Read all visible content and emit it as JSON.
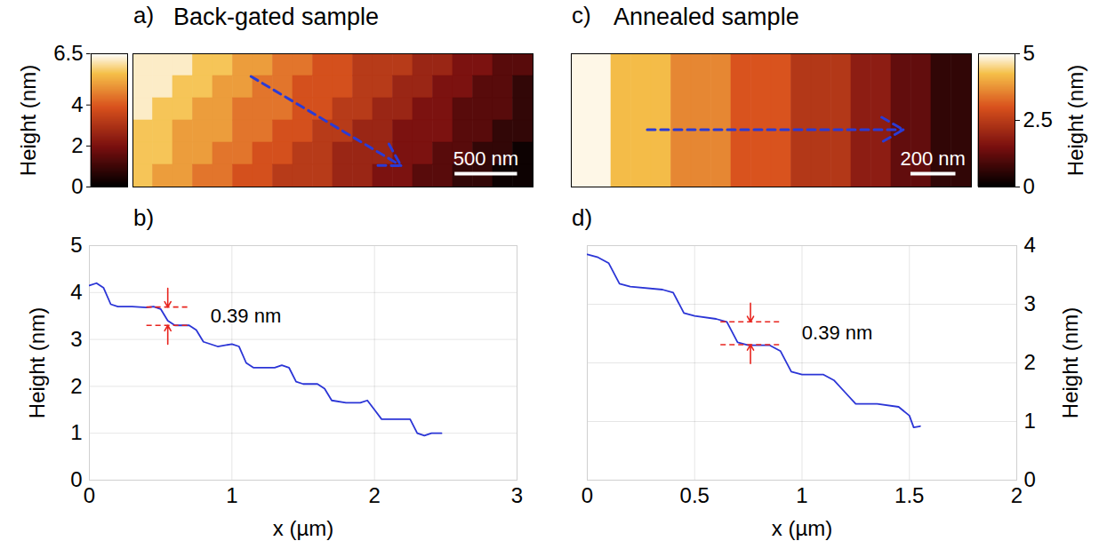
{
  "chart_data": [
    {
      "type": "heatmap",
      "panel": "a)",
      "title": "Back-gated sample",
      "xlim": [
        0,
        3200
      ],
      "ylim": [
        0,
        1070
      ],
      "cells": [
        [
          6.2,
          6.2,
          6.2,
          5.6,
          5.6,
          5.0,
          5.0,
          4.4,
          4.4,
          3.8,
          3.8,
          3.2,
          3.2,
          3.2,
          2.6,
          2.6,
          2.0,
          2.0,
          1.4,
          1.4
        ],
        [
          6.2,
          6.2,
          5.6,
          5.6,
          5.0,
          5.0,
          4.4,
          4.4,
          3.8,
          3.8,
          3.8,
          3.2,
          3.2,
          2.6,
          2.6,
          2.0,
          2.0,
          1.4,
          1.4,
          0.8
        ],
        [
          6.2,
          5.6,
          5.6,
          5.0,
          5.0,
          4.4,
          4.4,
          4.4,
          3.8,
          3.8,
          3.2,
          3.2,
          2.6,
          2.6,
          2.0,
          2.0,
          1.4,
          1.4,
          1.4,
          0.8
        ],
        [
          5.6,
          5.6,
          5.0,
          5.0,
          5.0,
          4.4,
          4.4,
          3.8,
          3.8,
          3.2,
          3.2,
          2.6,
          2.6,
          2.0,
          2.0,
          2.0,
          1.4,
          1.4,
          0.8,
          0.8
        ],
        [
          5.6,
          5.6,
          5.0,
          5.0,
          4.4,
          4.4,
          3.8,
          3.8,
          3.2,
          3.2,
          2.6,
          2.6,
          2.6,
          2.0,
          2.0,
          1.4,
          1.4,
          0.8,
          0.8,
          0.2
        ],
        [
          5.6,
          5.0,
          5.0,
          4.4,
          4.4,
          3.8,
          3.8,
          3.2,
          3.2,
          3.2,
          2.6,
          2.6,
          2.0,
          2.0,
          1.4,
          1.4,
          0.8,
          0.8,
          0.2,
          0.2
        ]
      ],
      "colorbar": {
        "label": "Height (nm)",
        "range": [
          0,
          6.5
        ],
        "ticks": [
          0,
          2,
          4,
          6.5
        ]
      },
      "scalebar": {
        "length": 500,
        "label": "500 nm"
      },
      "profile_arrow": {
        "x": [
          944,
          2144
        ],
        "y": [
          888,
          171
        ]
      },
      "tick_labels": false
    },
    {
      "type": "heatmap",
      "panel": "c)",
      "title": "Annealed sample",
      "xlim": [
        0,
        1780
      ],
      "ylim": [
        0,
        600
      ],
      "cells": [
        [
          4.9,
          4.9,
          4.2,
          4.2,
          4.2,
          3.6,
          3.6,
          3.6,
          3.0,
          3.0,
          3.0,
          2.4,
          2.4,
          2.4,
          1.8,
          1.8,
          1.2,
          1.2,
          0.6,
          0.6
        ]
      ],
      "colorbar": {
        "label": "Height (nm)",
        "range": [
          0,
          5
        ],
        "ticks": [
          0,
          2.5,
          5
        ]
      },
      "scalebar": {
        "length": 200,
        "label": "200 nm"
      },
      "profile_arrow": {
        "x": [
          338,
          1477
        ],
        "y": [
          258,
          258
        ]
      },
      "tick_labels": false
    },
    {
      "type": "line",
      "panel": "b)",
      "x": [
        0,
        0.05,
        0.1,
        0.15,
        0.2,
        0.3,
        0.4,
        0.45,
        0.5,
        0.55,
        0.6,
        0.7,
        0.75,
        0.8,
        0.9,
        1.0,
        1.05,
        1.1,
        1.15,
        1.3,
        1.35,
        1.4,
        1.45,
        1.5,
        1.6,
        1.65,
        1.7,
        1.8,
        1.9,
        1.95,
        2.0,
        2.05,
        2.2,
        2.25,
        2.3,
        2.35,
        2.4,
        2.47
      ],
      "values": [
        4.15,
        4.2,
        4.1,
        3.75,
        3.7,
        3.7,
        3.68,
        3.7,
        3.65,
        3.4,
        3.3,
        3.3,
        3.2,
        2.95,
        2.85,
        2.9,
        2.85,
        2.5,
        2.4,
        2.4,
        2.45,
        2.4,
        2.1,
        2.05,
        2.05,
        1.95,
        1.7,
        1.65,
        1.65,
        1.7,
        1.5,
        1.3,
        1.3,
        1.3,
        1.0,
        0.95,
        1.0,
        1.0
      ],
      "color": "#2b35d6",
      "xlabel": "x (µm)",
      "ylabel": "Height (nm)",
      "xlim": [
        0,
        3
      ],
      "ylim": [
        0,
        5
      ],
      "xticks": [
        0,
        1,
        2,
        3
      ],
      "yticks": [
        0,
        1,
        2,
        3,
        4,
        5
      ],
      "grid": true,
      "annotation": {
        "text": "0.39 nm",
        "x": [
          0.4,
          0.7
        ],
        "y": [
          3.69,
          3.3
        ],
        "color": "#e8251f"
      }
    },
    {
      "type": "line",
      "panel": "d)",
      "x": [
        0,
        0.05,
        0.1,
        0.15,
        0.2,
        0.35,
        0.4,
        0.45,
        0.5,
        0.6,
        0.65,
        0.7,
        0.75,
        0.85,
        0.9,
        0.95,
        1.0,
        1.1,
        1.15,
        1.2,
        1.25,
        1.35,
        1.45,
        1.5,
        1.52,
        1.55
      ],
      "values": [
        3.85,
        3.8,
        3.7,
        3.35,
        3.3,
        3.25,
        3.2,
        2.85,
        2.8,
        2.75,
        2.7,
        2.35,
        2.3,
        2.3,
        2.2,
        1.85,
        1.8,
        1.8,
        1.7,
        1.5,
        1.3,
        1.3,
        1.25,
        1.1,
        0.9,
        0.92
      ],
      "color": "#2b35d6",
      "xlabel": "x (µm)",
      "ylabel": "Height (nm)",
      "xlim": [
        0,
        2
      ],
      "y2lim": [
        0,
        4
      ],
      "xticks": [
        0,
        0.5,
        1,
        1.5,
        2
      ],
      "y2ticks": [
        0,
        1,
        2,
        3,
        4
      ],
      "axis": "y2",
      "grid": true,
      "annotation": {
        "text": "0.39 nm",
        "x": [
          0.62,
          0.9
        ],
        "y": [
          2.7,
          2.31
        ],
        "color": "#e8251f"
      }
    }
  ]
}
